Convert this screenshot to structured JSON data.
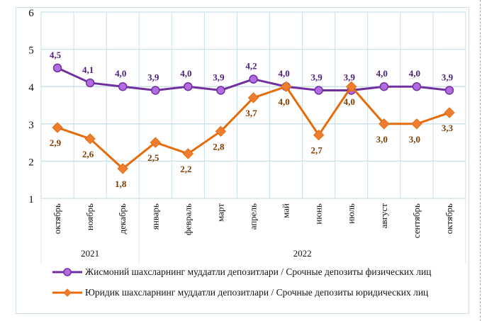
{
  "chart_data": {
    "type": "line",
    "title": "",
    "categories": [
      "октябрь",
      "ноябрь",
      "декабрь",
      "январь",
      "февраль",
      "март",
      "апрель",
      "май",
      "июнь",
      "июль",
      "август",
      "сентябрь",
      "октябрь"
    ],
    "year_groups": [
      {
        "label": "2021",
        "count": 3
      },
      {
        "label": "2022",
        "count": 10
      }
    ],
    "y_ticks": [
      "1",
      "2",
      "3",
      "4",
      "5",
      "6"
    ],
    "ylim": [
      1,
      6
    ],
    "grid": true,
    "legend_position": "bottom",
    "series": [
      {
        "name": "Жисмоний шахсларнинг  муддатли  депозитлари  / Срочные депозиты  физических  лиц",
        "color": "#7030a0",
        "marker_color": "#b36be0",
        "marker": "circle",
        "values": [
          4.5,
          4.1,
          4.0,
          3.9,
          4.0,
          3.9,
          4.2,
          4.0,
          3.9,
          3.9,
          4.0,
          4.0,
          3.9
        ],
        "labels": [
          "4,5",
          "4,1",
          "4,0",
          "3,9",
          "4,0",
          "3,9",
          "4,2",
          "4,0",
          "3,9",
          "3,9",
          "4,0",
          "4,0",
          "3,9"
        ]
      },
      {
        "name": "Юридик  шахсларнинг  муддатли  депозитлари  / Срочные депозиты  юридических  лиц",
        "color": "#e46c0a",
        "marker_color": "#ed7d31",
        "marker": "diamond",
        "values": [
          2.9,
          2.6,
          1.8,
          2.5,
          2.2,
          2.8,
          3.7,
          4.0,
          2.7,
          4.0,
          3.0,
          3.0,
          3.3
        ],
        "labels": [
          "2,9",
          "2,6",
          "1,8",
          "2,5",
          "2,2",
          "2,8",
          "3,7",
          "4,0",
          "2,7",
          "4,0",
          "3,0",
          "3,0",
          "3,3"
        ]
      }
    ]
  }
}
